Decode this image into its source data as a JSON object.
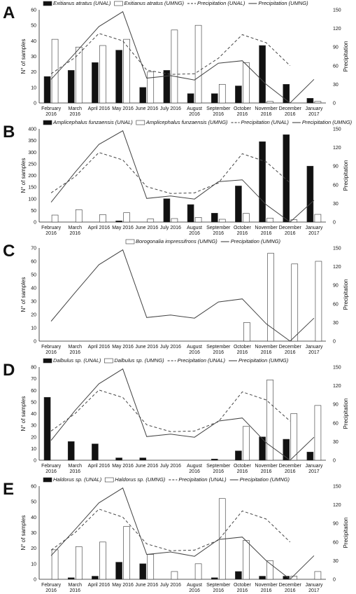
{
  "chart_data": [
    {
      "type": "bar+line",
      "panel_label": "A",
      "categories": [
        "February 2016",
        "March 2016",
        "April 2016",
        "May 2016",
        "June 2016",
        "July 2016",
        "August 2016",
        "September 2016",
        "October 2016",
        "November 2016",
        "December 2016",
        "January 2017"
      ],
      "ylabel": "N° of samples",
      "y2label": "Precipitation",
      "ylim": [
        0,
        60
      ],
      "yticks": [
        0,
        10,
        20,
        30,
        40,
        50,
        60
      ],
      "y2lim": [
        0,
        150
      ],
      "y2ticks": [
        0,
        30,
        60,
        90,
        120,
        150
      ],
      "bar_series": [
        {
          "name": "Exitianus atratus (UNAL)",
          "fill": "black",
          "values": [
            17,
            21,
            26,
            34,
            10,
            21,
            6,
            6,
            11,
            37,
            12,
            3
          ]
        },
        {
          "name": "Exitianus atratus (UMNG)",
          "fill": "white",
          "values": [
            41,
            36,
            37,
            41,
            20,
            47,
            50,
            12,
            26,
            1,
            0,
            1
          ]
        }
      ],
      "line_series": [
        {
          "name": "Precipitation (UNAL)",
          "dash": "dashed",
          "values": [
            47,
            73,
            112,
            100,
            53,
            46,
            47,
            72,
            110,
            97,
            60,
            null
          ]
        },
        {
          "name": "Precipitation (UMNG)",
          "dash": "solid",
          "values": [
            38,
            80,
            123,
            147,
            40,
            44,
            37,
            64,
            68,
            30,
            0,
            38
          ]
        }
      ]
    },
    {
      "type": "bar+line",
      "panel_label": "B",
      "categories": [
        "February 2016",
        "March 2016",
        "April 2016",
        "May 2016",
        "June 2016",
        "July 2016",
        "August 2016",
        "September 2016",
        "October 2016",
        "November 2016",
        "December 2016",
        "January 2017"
      ],
      "ylabel": "N° of samples",
      "y2label": "Precipitation",
      "ylim": [
        0,
        400
      ],
      "yticks": [
        0,
        50,
        100,
        150,
        200,
        250,
        300,
        350,
        400
      ],
      "y2lim": [
        0,
        150
      ],
      "y2ticks": [
        0,
        30,
        60,
        90,
        120,
        150
      ],
      "bar_series": [
        {
          "name": "Amplicephalus funzaensis (UNAL)",
          "fill": "black",
          "values": [
            0,
            0,
            0,
            5,
            0,
            100,
            75,
            38,
            155,
            345,
            375,
            240
          ]
        },
        {
          "name": "Amplicephalus funzaensis (UMNG)",
          "fill": "white",
          "values": [
            30,
            53,
            32,
            40,
            13,
            15,
            20,
            12,
            37,
            17,
            10,
            33
          ]
        }
      ],
      "line_series": [
        {
          "name": "Precipitation (UNAL)",
          "dash": "dashed",
          "values": [
            47,
            73,
            112,
            100,
            57,
            46,
            47,
            63,
            110,
            97,
            63,
            null
          ]
        },
        {
          "name": "Precipitation (UMNG)",
          "dash": "solid",
          "values": [
            32,
            80,
            125,
            147,
            38,
            42,
            37,
            65,
            68,
            28,
            0,
            35
          ]
        }
      ]
    },
    {
      "type": "bar+line",
      "panel_label": "C",
      "categories": [
        "February 2016",
        "March 2016",
        "April 2016",
        "May 2016",
        "June 2016",
        "July 2016",
        "August 2016",
        "September 2016",
        "October 2016",
        "November 2016",
        "December 2016",
        "January 2017"
      ],
      "ylabel": "N° of samples",
      "y2label": "Precipitation",
      "ylim": [
        0,
        70
      ],
      "yticks": [
        0,
        10,
        20,
        30,
        40,
        50,
        60,
        70
      ],
      "y2lim": [
        0,
        150
      ],
      "y2ticks": [
        0,
        30,
        60,
        90,
        120,
        150
      ],
      "bar_series": [
        {
          "name": "Borogonalia impressifrons (UMNG)",
          "fill": "white",
          "values": [
            0,
            0,
            0,
            0,
            0,
            0,
            0,
            0,
            14,
            66,
            58,
            60
          ]
        }
      ],
      "line_series": [
        {
          "name": "Precipitation (UMNG)",
          "dash": "solid",
          "values": [
            32,
            78,
            123,
            147,
            38,
            42,
            37,
            63,
            68,
            28,
            0,
            37
          ]
        }
      ]
    },
    {
      "type": "bar+line",
      "panel_label": "D",
      "categories": [
        "February 2016",
        "March 2016",
        "April 2016",
        "May 2016",
        "June 2016",
        "July 2016",
        "August 2016",
        "September 2016",
        "October 2016",
        "November 2016",
        "December 2016",
        "January 2017"
      ],
      "ylabel": "N° of samples",
      "y2label": "Precipitation",
      "ylim": [
        0,
        80
      ],
      "yticks": [
        0,
        10,
        20,
        30,
        40,
        50,
        60,
        70,
        80
      ],
      "y2lim": [
        0,
        150
      ],
      "y2ticks": [
        0,
        30,
        60,
        90,
        120,
        150
      ],
      "bar_series": [
        {
          "name": "Dalbulus sp. (UNAL)",
          "fill": "black",
          "values": [
            54,
            16,
            14,
            2,
            2,
            0,
            0,
            1,
            8,
            20,
            18,
            7
          ]
        },
        {
          "name": "Dalbulus sp. (UMNG)",
          "fill": "white",
          "values": [
            0,
            0,
            0,
            0,
            0,
            0,
            0,
            0,
            29,
            69,
            40,
            47
          ]
        }
      ],
      "line_series": [
        {
          "name": "Precipitation (UNAL)",
          "dash": "dashed",
          "values": [
            47,
            75,
            113,
            101,
            57,
            46,
            47,
            62,
            110,
            97,
            63,
            null
          ]
        },
        {
          "name": "Precipitation (UMNG)",
          "dash": "solid",
          "values": [
            32,
            80,
            123,
            147,
            38,
            42,
            37,
            63,
            68,
            28,
            0,
            37
          ]
        }
      ]
    },
    {
      "type": "bar+line",
      "panel_label": "E",
      "categories": [
        "February 2016",
        "March 2016",
        "April 2016",
        "May 2016",
        "June 2016",
        "July 2016",
        "August 2016",
        "September 2016",
        "October 2016",
        "November 2016",
        "December 2016",
        "January 2017"
      ],
      "ylabel": "N° of samples",
      "y2label": "Precipitation",
      "ylim": [
        0,
        60
      ],
      "yticks": [
        0,
        10,
        20,
        30,
        40,
        50,
        60
      ],
      "y2lim": [
        0,
        150
      ],
      "y2ticks": [
        0,
        30,
        60,
        90,
        120,
        150
      ],
      "bar_series": [
        {
          "name": "Haldorus sp. (UNAL)",
          "fill": "black",
          "values": [
            0,
            1,
            2,
            11,
            10,
            0,
            0,
            1,
            5,
            2,
            2,
            0
          ]
        },
        {
          "name": "Haldorus sp. (UMNG)",
          "fill": "white",
          "values": [
            19,
            21,
            24,
            34,
            16,
            5,
            10,
            52,
            25,
            12,
            2,
            5
          ]
        }
      ],
      "line_series": [
        {
          "name": "Precipitation (UNAL)",
          "dash": "dashed",
          "values": [
            47,
            75,
            113,
            100,
            57,
            46,
            47,
            63,
            110,
            97,
            60,
            null
          ]
        },
        {
          "name": "Precipitation (UMNG)",
          "dash": "solid",
          "values": [
            38,
            80,
            123,
            147,
            40,
            44,
            37,
            64,
            68,
            30,
            0,
            38
          ]
        }
      ]
    }
  ]
}
